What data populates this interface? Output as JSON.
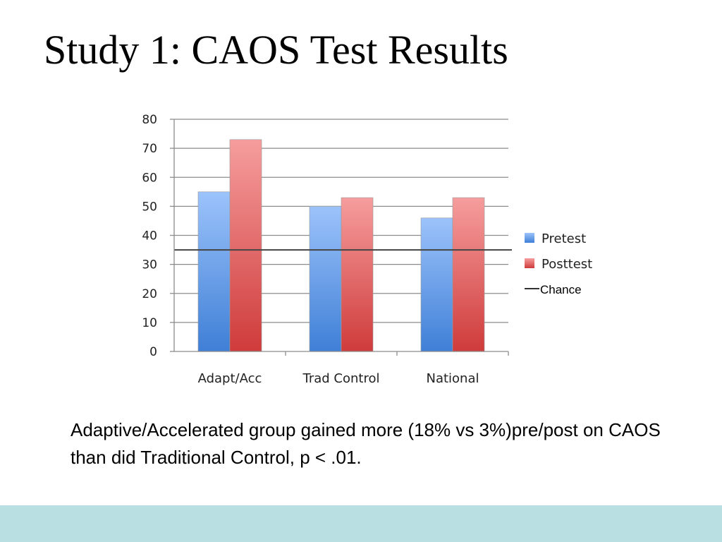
{
  "slide": {
    "title": "Study 1: CAOS Test Results",
    "caption": "Adaptive/Accelerated group gained more (18% vs 3%)pre/post on CAOS than did Traditional Control, p < .01.",
    "footer_color": "#b9dfe3"
  },
  "chart_data": {
    "type": "bar",
    "categories": [
      "Adapt/Acc",
      "Trad Control",
      "National"
    ],
    "series": [
      {
        "name": "Pretest",
        "values": [
          55,
          50,
          46
        ],
        "color_top": "#9cc3fb",
        "color_bottom": "#3f7fd6"
      },
      {
        "name": "Posttest",
        "values": [
          73,
          53,
          53
        ],
        "color_top": "#f69d9d",
        "color_bottom": "#cf3b3b"
      }
    ],
    "reference_line": {
      "name": "Chance",
      "value": 35,
      "color": "#444444"
    },
    "ylim": [
      0,
      80
    ],
    "yticks": [
      "0",
      "10",
      "20",
      "30",
      "40",
      "50",
      "60",
      "70",
      "80"
    ],
    "grid": true,
    "legend_position": "right"
  }
}
